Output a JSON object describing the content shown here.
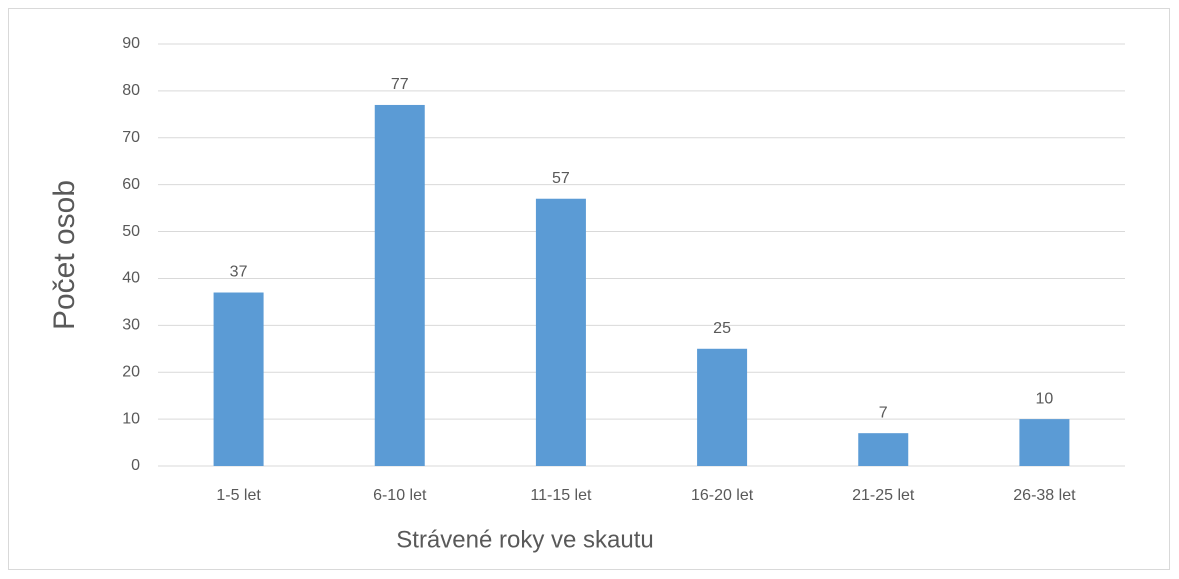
{
  "chart_data": {
    "type": "bar",
    "categories": [
      "1-5 let",
      "6-10 let",
      "11-15 let",
      "16-20 let",
      "21-25 let",
      "26-38 let"
    ],
    "values": [
      37,
      77,
      57,
      25,
      7,
      10
    ],
    "color": "#5b9bd5",
    "xlabel": "Strávené roky ve skautu",
    "ylabel": "Počet osob",
    "ylim": [
      0,
      90
    ],
    "yticks": [
      0,
      10,
      20,
      30,
      40,
      50,
      60,
      70,
      80,
      90
    ],
    "grid": true
  }
}
